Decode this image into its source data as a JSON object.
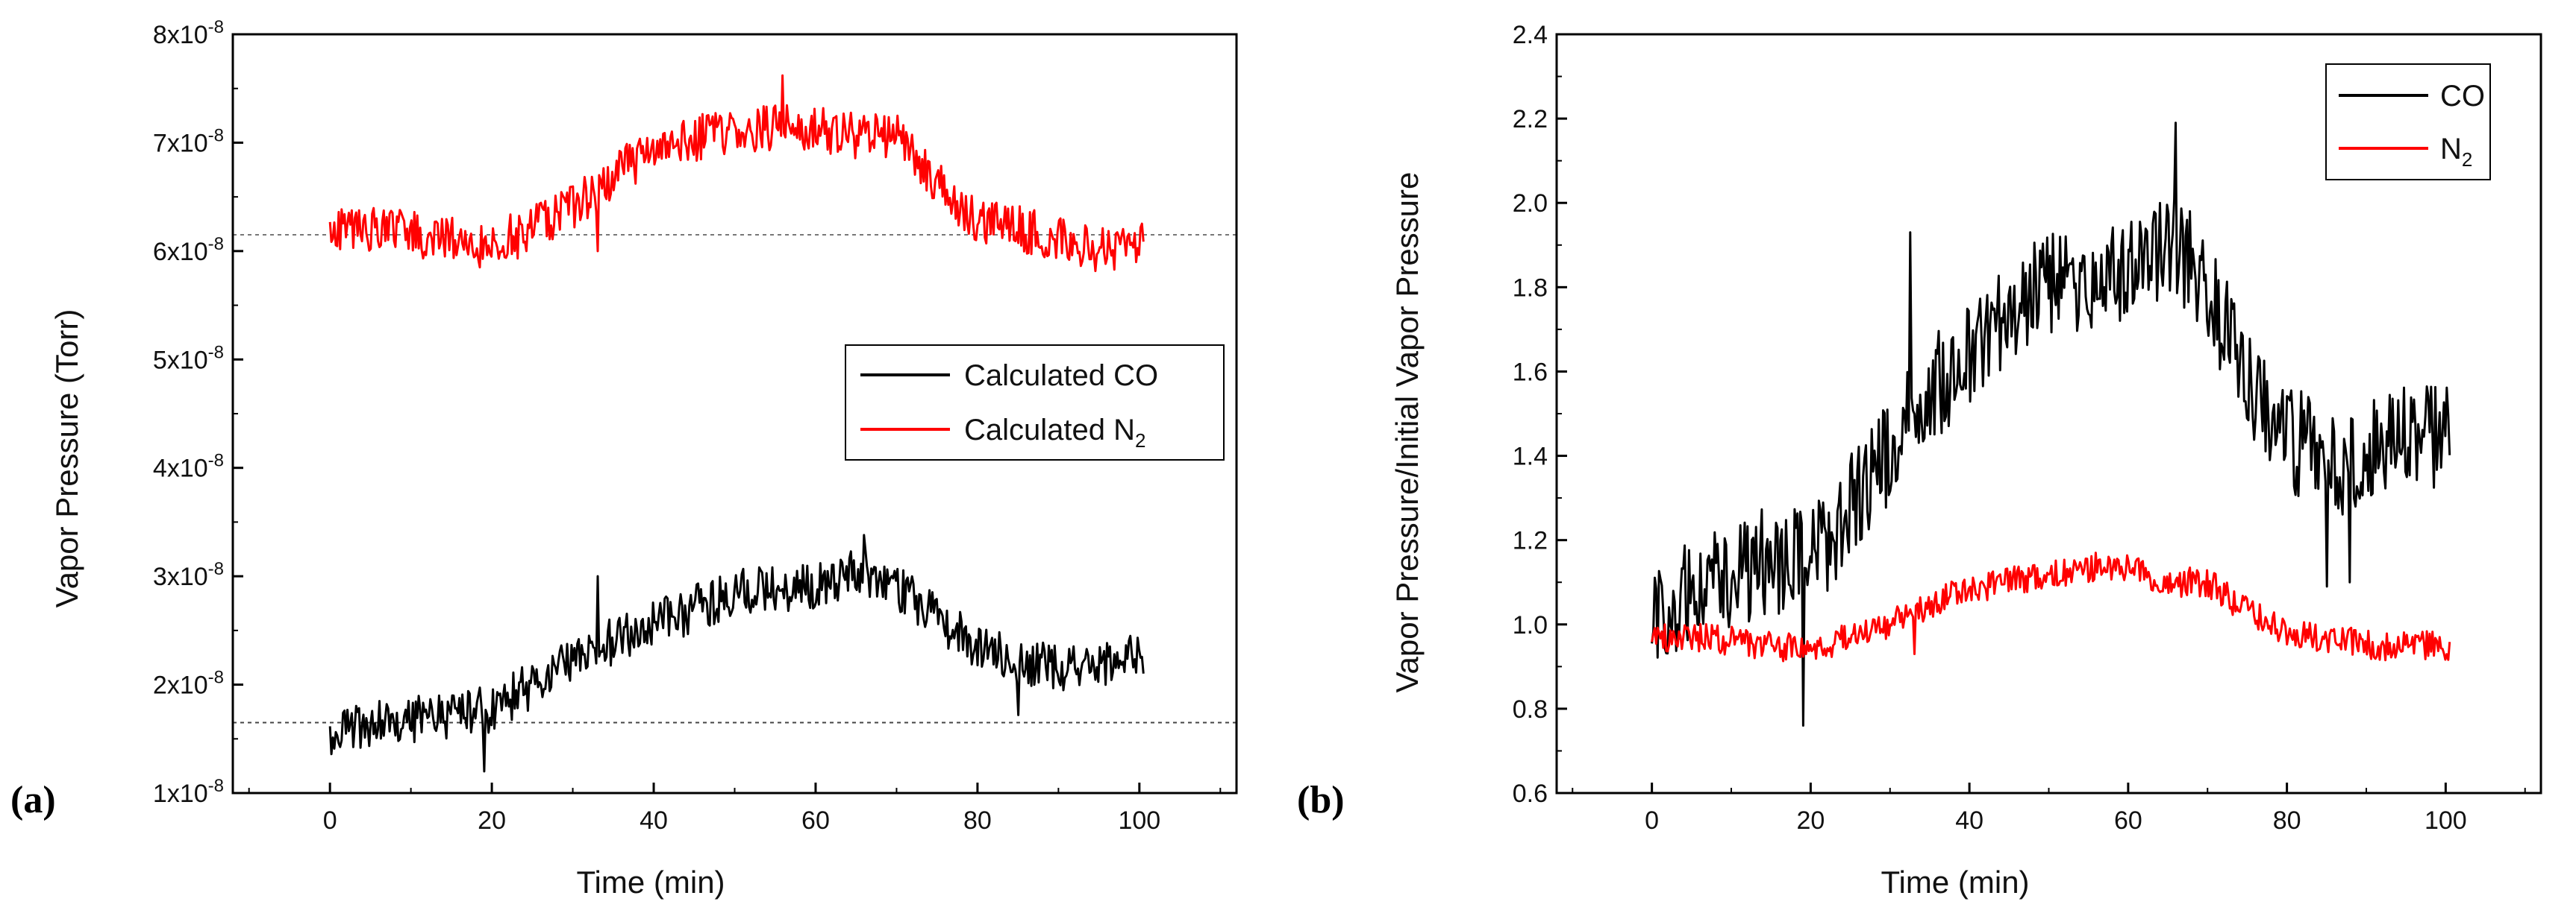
{
  "chart_data": [
    {
      "panel_label": "(a)",
      "type": "line",
      "xlabel": "Time (min)",
      "ylabel": "Vapor Pressure (Torr)",
      "xlim": [
        -12,
        112
      ],
      "ylim": [
        1e-08,
        8e-08
      ],
      "x_ticks": [
        0,
        20,
        40,
        60,
        80,
        100
      ],
      "x_tick_labels": [
        "0",
        "20",
        "40",
        "60",
        "80",
        "100"
      ],
      "y_ticks": [
        1e-08,
        2e-08,
        3e-08,
        4e-08,
        5e-08,
        6e-08,
        7e-08,
        8e-08
      ],
      "y_tick_mantissa": [
        "1",
        "2",
        "3",
        "4",
        "5",
        "6",
        "7",
        "8"
      ],
      "y_tick_exp_base": "x10",
      "y_tick_exponent": "-8",
      "legend": {
        "placement": "center-right",
        "entries": [
          {
            "label": "Calculated CO",
            "color": "#000000"
          },
          {
            "label": "Calculated N",
            "subscript": "2",
            "color": "#ff0000"
          }
        ]
      },
      "reference_lines": [
        {
          "y": 6.15e-08,
          "style": "dotted",
          "color": "#777777"
        },
        {
          "y": 1.65e-08,
          "style": "dotted",
          "color": "#444444"
        }
      ],
      "series": [
        {
          "name": "Calculated CO",
          "color": "#000000",
          "x_knots": [
            0,
            5,
            10,
            15,
            20,
            25,
            30,
            35,
            40,
            45,
            50,
            55,
            60,
            65,
            70,
            75,
            80,
            85,
            90,
            95,
            100.5
          ],
          "y_knots": [
            1.55e-08,
            1.62e-08,
            1.68e-08,
            1.72e-08,
            1.78e-08,
            2e-08,
            2.2e-08,
            2.4e-08,
            2.55e-08,
            2.7e-08,
            2.85e-08,
            2.9e-08,
            2.9e-08,
            3.05e-08,
            2.9e-08,
            2.6e-08,
            2.35e-08,
            2.2e-08,
            2.15e-08,
            2.2e-08,
            2.25e-08
          ],
          "noise_amplitude": 2.2e-09,
          "spikes": [
            [
              19,
              1.2e-08
            ],
            [
              33,
              3e-08
            ],
            [
              66,
              3.38e-08
            ],
            [
              85,
              1.72e-08
            ]
          ]
        },
        {
          "name": "Calculated N2",
          "color": "#ff0000",
          "x_knots": [
            0,
            5,
            10,
            15,
            20,
            25,
            30,
            35,
            40,
            45,
            50,
            55,
            60,
            65,
            70,
            75,
            80,
            85,
            90,
            95,
            100.5
          ],
          "y_knots": [
            6.2e-08,
            6.2e-08,
            6.15e-08,
            6.1e-08,
            6.05e-08,
            6.2e-08,
            6.4e-08,
            6.7e-08,
            6.95e-08,
            7.05e-08,
            7.1e-08,
            7.15e-08,
            7.15e-08,
            7.05e-08,
            7.1e-08,
            6.6e-08,
            6.3e-08,
            6.2e-08,
            6.1e-08,
            6e-08,
            6.1e-08
          ],
          "noise_amplitude": 2.2e-09,
          "spikes": [
            [
              56,
              7.62e-08
            ],
            [
              33,
              6e-08
            ]
          ]
        }
      ]
    },
    {
      "panel_label": "(b)",
      "type": "line",
      "xlabel": "Time (min)",
      "ylabel": "Vapor Pressure/Initial Vapor Pressure",
      "xlim": [
        -12,
        112
      ],
      "ylim": [
        0.6,
        2.4
      ],
      "x_ticks": [
        0,
        20,
        40,
        60,
        80,
        100
      ],
      "x_tick_labels": [
        "0",
        "20",
        "40",
        "60",
        "80",
        "100"
      ],
      "y_ticks": [
        0.6,
        0.8,
        1.0,
        1.2,
        1.4,
        1.6,
        1.8,
        2.0,
        2.2,
        2.4
      ],
      "y_tick_labels": [
        "0.6",
        "0.8",
        "1.0",
        "1.2",
        "1.4",
        "1.6",
        "1.8",
        "2.0",
        "2.2",
        "2.4"
      ],
      "legend": {
        "placement": "top-right",
        "entries": [
          {
            "label": "CO",
            "color": "#000000"
          },
          {
            "label": "N",
            "subscript": "2",
            "color": "#ff0000"
          }
        ]
      },
      "series": [
        {
          "name": "CO",
          "color": "#000000",
          "x_knots": [
            0,
            5,
            10,
            15,
            20,
            25,
            30,
            35,
            40,
            45,
            50,
            55,
            60,
            65,
            70,
            75,
            80,
            85,
            90,
            95,
            100.5
          ],
          "y_knots": [
            1.0,
            1.08,
            1.12,
            1.15,
            1.15,
            1.28,
            1.42,
            1.55,
            1.65,
            1.75,
            1.8,
            1.82,
            1.82,
            1.92,
            1.8,
            1.58,
            1.45,
            1.38,
            1.4,
            1.45,
            1.45
          ],
          "noise_amplitude": 0.13,
          "spikes": [
            [
              19,
              0.76
            ],
            [
              66,
              2.19
            ],
            [
              32.5,
              1.93
            ],
            [
              85,
              1.09
            ],
            [
              88,
              1.1
            ]
          ]
        },
        {
          "name": "N2",
          "color": "#ff0000",
          "x_knots": [
            0,
            5,
            10,
            15,
            20,
            25,
            30,
            35,
            40,
            45,
            50,
            55,
            60,
            65,
            70,
            75,
            80,
            85,
            90,
            95,
            100.5
          ],
          "y_knots": [
            0.97,
            0.97,
            0.96,
            0.95,
            0.94,
            0.97,
            1.0,
            1.05,
            1.08,
            1.1,
            1.12,
            1.13,
            1.13,
            1.1,
            1.1,
            1.03,
            0.98,
            0.97,
            0.95,
            0.95,
            0.95
          ],
          "noise_amplitude": 0.035,
          "spikes": [
            [
              56,
              1.17
            ],
            [
              33,
              0.93
            ]
          ]
        }
      ]
    }
  ]
}
